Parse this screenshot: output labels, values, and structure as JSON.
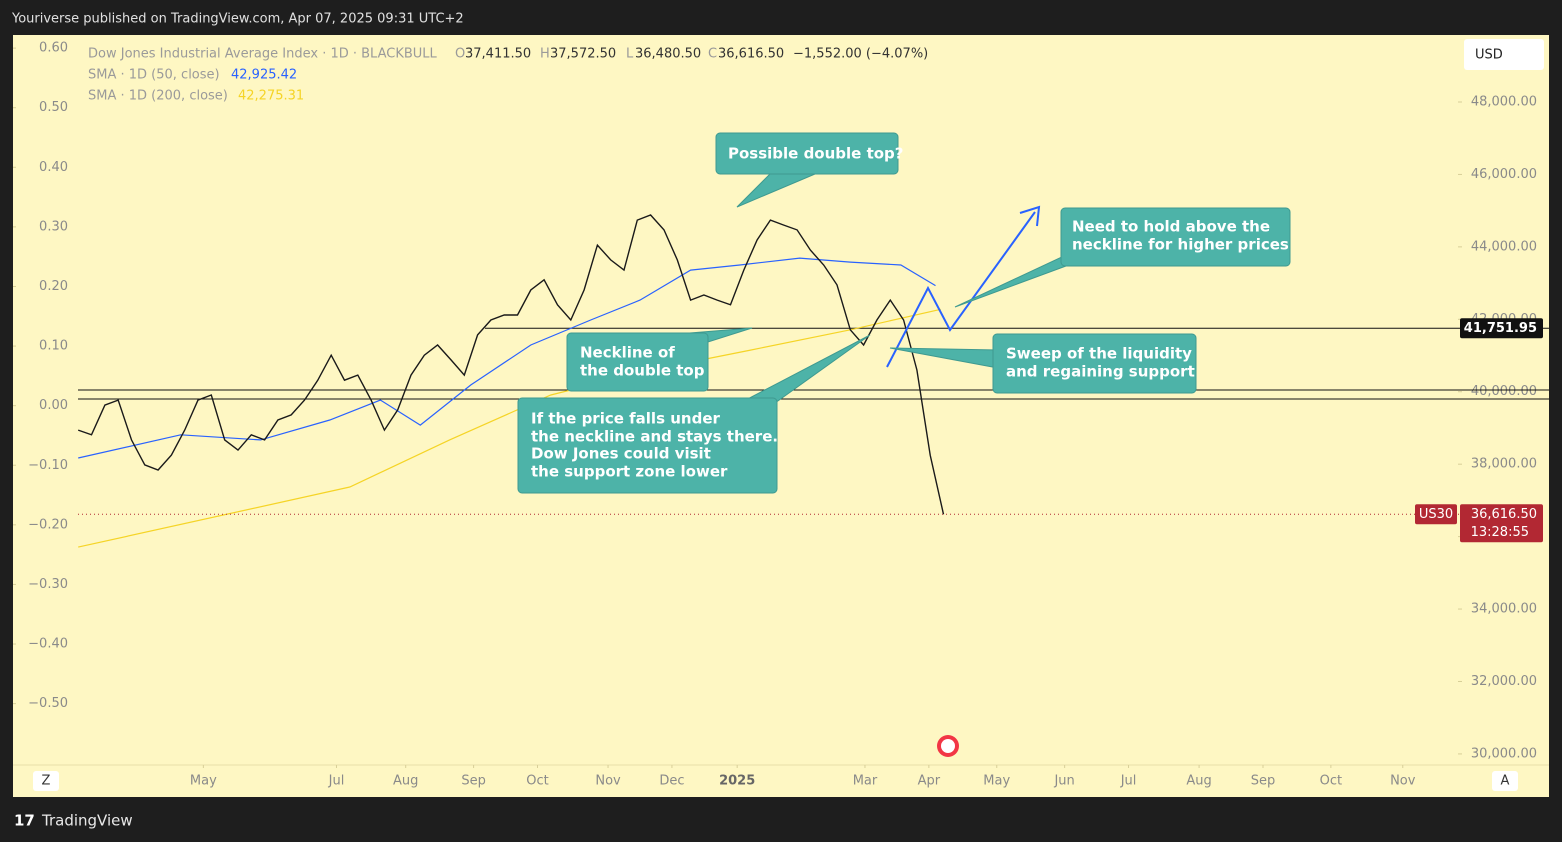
{
  "header": {
    "publisher": "Youriverse published on TradingView.com, Apr 07, 2025 09:31 UTC+2"
  },
  "legend": {
    "open_label": "O",
    "open": "37,411.50",
    "high_label": "H",
    "high": "37,572.50",
    "low_label": "L",
    "low": "36,480.50",
    "close_label": "C",
    "close": "36,616.50",
    "change": "−1,552.00 (−4.07%)",
    "sma50_value": "42,925.42",
    "sma200_value": "42,275.31"
  },
  "chart_data": {
    "type": "line",
    "series": [
      {
        "name": "Dow Jones Industrial Average Index · 1D · BLACKBULL",
        "color": "#1a1a1a",
        "x": [
          0,
          1,
          2,
          3,
          4,
          5,
          6,
          7,
          8,
          9,
          10,
          11,
          12,
          13,
          14,
          15,
          16,
          17,
          18,
          19,
          20,
          21,
          22,
          23,
          24,
          25,
          26,
          27,
          28,
          29,
          30,
          31,
          32,
          33,
          34,
          35,
          36,
          37,
          38,
          39,
          40,
          41,
          42,
          43,
          44,
          45,
          46,
          47,
          48,
          49,
          50,
          51,
          52,
          53,
          54,
          55,
          56,
          57,
          58,
          59,
          60,
          61,
          62,
          63,
          64,
          65
        ],
        "values": [
          38940,
          38810,
          39630,
          39770,
          38670,
          37980,
          37840,
          38250,
          38940,
          39770,
          39910,
          38670,
          38390,
          38810,
          38670,
          39220,
          39360,
          39770,
          40320,
          41010,
          40320,
          40460,
          39770,
          38940,
          39500,
          40460,
          41010,
          41290,
          40880,
          40460,
          41570,
          41980,
          42120,
          42120,
          42810,
          43090,
          42400,
          41980,
          42810,
          44050,
          43640,
          43360,
          44740,
          44880,
          44470,
          43640,
          42530,
          42670,
          42530,
          42400,
          43360,
          44190,
          44740,
          44600,
          44470,
          43910,
          43500,
          42950,
          41710,
          41290,
          41980,
          42530,
          41980,
          40600,
          38250,
          36616.5
        ]
      },
      {
        "name": "SMA · 1D (50, close)",
        "color": "#2962ff",
        "x": [
          0,
          7.7,
          13.7,
          18.9,
          22.7,
          25.7,
          29.5,
          34.0,
          38.5,
          42.2,
          46.0,
          49.7,
          54.2,
          58.0,
          61.8,
          64.4
        ],
        "values": [
          38170,
          38810,
          38670,
          39220,
          39770,
          39080,
          40190,
          41290,
          41980,
          42530,
          43360,
          43500,
          43690,
          43580,
          43500,
          42930
        ]
      },
      {
        "name": "SMA · 1D (200, close)",
        "color": "#f5d426",
        "x": [
          0,
          20.4,
          27.9,
          35.5,
          43.0,
          50.5,
          58.0,
          64.8
        ],
        "values": [
          35710,
          37370,
          38670,
          39910,
          40600,
          41150,
          41710,
          42275
        ]
      }
    ],
    "xlim": [
      -4.9,
      103.8
    ],
    "xticks": [
      {
        "value": 9.4,
        "label": "May"
      },
      {
        "value": 19.4,
        "label": "Jul"
      },
      {
        "value": 24.6,
        "label": "Aug"
      },
      {
        "value": 29.7,
        "label": "Sep"
      },
      {
        "value": 34.5,
        "label": "Oct"
      },
      {
        "value": 39.8,
        "label": "Nov"
      },
      {
        "value": 44.6,
        "label": "Dec"
      },
      {
        "value": 49.5,
        "label": "2025"
      },
      {
        "value": 59.1,
        "label": "Mar"
      },
      {
        "value": 63.9,
        "label": "Apr"
      },
      {
        "value": 69.0,
        "label": "May"
      },
      {
        "value": 74.1,
        "label": "Jun"
      },
      {
        "value": 78.9,
        "label": "Jul"
      },
      {
        "value": 84.2,
        "label": "Aug"
      },
      {
        "value": 89.0,
        "label": "Sep"
      },
      {
        "value": 94.1,
        "label": "Oct"
      },
      {
        "value": 99.5,
        "label": "Nov"
      }
    ],
    "ylim": [
      29694,
      49850
    ],
    "yticks": [
      {
        "value": 48000,
        "label": "48,000.00"
      },
      {
        "value": 46000,
        "label": "46,000.00"
      },
      {
        "value": 44000,
        "label": "44,000.00"
      },
      {
        "value": 42000,
        "label": "42,000.00"
      },
      {
        "value": 40000,
        "label": "40,000.00"
      },
      {
        "value": 38000,
        "label": "38,000.00"
      },
      {
        "value": 36000,
        "label": "36,000.00"
      },
      {
        "value": 34000,
        "label": "34,000.00"
      },
      {
        "value": 32000,
        "label": "32,000.00"
      },
      {
        "value": 30000,
        "label": "30,000.00"
      }
    ],
    "y2lim": [
      -0.603,
      0.622
    ],
    "y2ticks": [
      {
        "value": 0.6,
        "label": "0.60"
      },
      {
        "value": 0.5,
        "label": "0.50"
      },
      {
        "value": 0.4,
        "label": "0.40"
      },
      {
        "value": 0.3,
        "label": "0.30"
      },
      {
        "value": 0.2,
        "label": "0.20"
      },
      {
        "value": 0.1,
        "label": "0.10"
      },
      {
        "value": 0,
        "label": "0.00"
      },
      {
        "value": -0.1,
        "label": "−0.10"
      },
      {
        "value": -0.2,
        "label": "−0.20"
      },
      {
        "value": -0.3,
        "label": "−0.30"
      },
      {
        "value": -0.4,
        "label": "−0.40"
      },
      {
        "value": -0.5,
        "label": "−0.50"
      }
    ],
    "levels": [
      {
        "value": 41751.95,
        "label": "41,751.95"
      },
      {
        "value": 40048
      },
      {
        "value": 39800
      }
    ],
    "last_price": {
      "value": 36616.5,
      "label": "36,616.50"
    },
    "countdown": "13:28:55",
    "symbol": "US30",
    "currency": "USD",
    "annotations": [
      [
        "Possible double top?"
      ],
      [
        "Need to hold above the",
        " neckline for higher prices"
      ],
      [
        "Neckline of",
        "the double top"
      ],
      [
        "Sweep of the liquidity",
        "and regaining support"
      ],
      [
        "If the price falls under",
        "the neckline and stays there.",
        "Dow Jones could visit",
        "the support zone lower"
      ]
    ]
  },
  "footer": {
    "scale_left": "Z",
    "scale_right": "A",
    "brand": "TradingView"
  }
}
